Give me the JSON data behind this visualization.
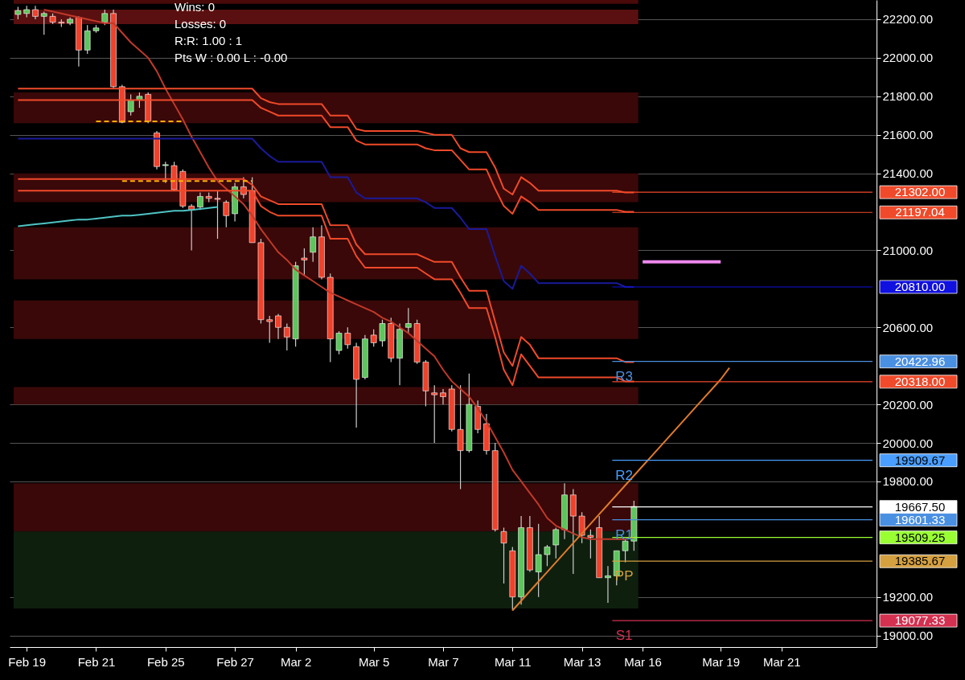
{
  "chart_data": {
    "type": "candlestick",
    "categories": [
      null,
      "Feb 19",
      null,
      null,
      null,
      null,
      null,
      null,
      null,
      "Feb 21",
      null,
      null,
      null,
      null,
      null,
      null,
      null,
      "Feb 25",
      null,
      null,
      null,
      null,
      null,
      null,
      null,
      "Feb 27",
      null,
      null,
      null,
      null,
      null,
      null,
      "Mar 2",
      null,
      null,
      null,
      null,
      null,
      null,
      null,
      null,
      "Mar 5",
      null,
      null,
      null,
      null,
      null,
      null,
      null,
      "Mar 7",
      null,
      null,
      null,
      null,
      null,
      null,
      null,
      "Mar 11",
      null,
      null,
      null,
      null,
      null,
      null,
      null,
      "Mar 13",
      null,
      null,
      null,
      null,
      null,
      null,
      "Mar 16",
      null,
      null,
      null,
      null,
      null,
      null,
      null,
      null,
      "Mar 19",
      null,
      null,
      null,
      null,
      null,
      null,
      "Mar 21",
      null,
      null,
      null,
      null,
      null,
      null,
      null,
      null,
      null,
      null
    ],
    "ohlc": [
      [
        22225,
        22265,
        22200,
        22245
      ],
      [
        22230,
        22270,
        22210,
        22250
      ],
      [
        22250,
        22270,
        22200,
        22215
      ],
      [
        22215,
        22240,
        22120,
        22230
      ],
      [
        22215,
        22230,
        22175,
        22185
      ],
      [
        22185,
        22200,
        22160,
        22180
      ],
      [
        22180,
        22210,
        22170,
        22200
      ],
      [
        22210,
        22215,
        21955,
        22040
      ],
      [
        22040,
        22170,
        22020,
        22140
      ],
      [
        22140,
        22170,
        22130,
        22155
      ],
      [
        22185,
        22250,
        22170,
        22230
      ],
      [
        22230,
        22250,
        21840,
        21850
      ],
      [
        21850,
        21860,
        21660,
        21665
      ],
      [
        21720,
        21810,
        21700,
        21780
      ],
      [
        21780,
        21820,
        21740,
        21800
      ],
      [
        21810,
        21820,
        21660,
        21670
      ],
      [
        21610,
        21620,
        21420,
        21435
      ],
      [
        21440,
        21460,
        21350,
        21445
      ],
      [
        21440,
        21460,
        21310,
        21315
      ],
      [
        21410,
        21420,
        21220,
        21230
      ],
      [
        21230,
        21240,
        21000,
        21210
      ],
      [
        21225,
        21300,
        21210,
        21280
      ],
      [
        21280,
        21300,
        21250,
        21270
      ],
      [
        21270,
        21310,
        21060,
        21265
      ],
      [
        21250,
        21260,
        21120,
        21180
      ],
      [
        21190,
        21350,
        21150,
        21330
      ],
      [
        21330,
        21380,
        21270,
        21290
      ],
      [
        21310,
        21380,
        21040,
        21040
      ],
      [
        21040,
        21060,
        20620,
        20640
      ],
      [
        20640,
        20660,
        20520,
        20630
      ],
      [
        20660,
        20670,
        20540,
        20600
      ],
      [
        20600,
        20620,
        20480,
        20550
      ],
      [
        20540,
        20940,
        20500,
        20920
      ],
      [
        20960,
        21010,
        20870,
        20950
      ],
      [
        20990,
        21120,
        20940,
        21070
      ],
      [
        21070,
        21130,
        20850,
        20860
      ],
      [
        20860,
        20880,
        20420,
        20540
      ],
      [
        20480,
        20580,
        20460,
        20570
      ],
      [
        20570,
        20600,
        20490,
        20510
      ],
      [
        20500,
        20520,
        20080,
        20330
      ],
      [
        20340,
        20560,
        20330,
        20540
      ],
      [
        20560,
        20590,
        20500,
        20520
      ],
      [
        20530,
        20640,
        20500,
        20620
      ],
      [
        20620,
        20650,
        20420,
        20440
      ],
      [
        20440,
        20620,
        20300,
        20590
      ],
      [
        20600,
        20700,
        20570,
        20620
      ],
      [
        20620,
        20640,
        20410,
        20420
      ],
      [
        20420,
        20430,
        20190,
        20270
      ],
      [
        20260,
        20300,
        20000,
        20250
      ],
      [
        20260,
        20280,
        20200,
        20240
      ],
      [
        20280,
        20300,
        20060,
        20070
      ],
      [
        20070,
        20300,
        19760,
        19960
      ],
      [
        19960,
        20360,
        19950,
        20200
      ],
      [
        20190,
        20220,
        20050,
        20070
      ],
      [
        20100,
        20150,
        19940,
        19960
      ],
      [
        19960,
        20000,
        19540,
        19550
      ],
      [
        19540,
        19560,
        19270,
        19480
      ],
      [
        19440,
        19460,
        19130,
        19200
      ],
      [
        19200,
        19620,
        19160,
        19560
      ],
      [
        19560,
        19620,
        19330,
        19340
      ],
      [
        19330,
        19580,
        19200,
        19420
      ],
      [
        19420,
        19470,
        19360,
        19460
      ],
      [
        19470,
        19560,
        19400,
        19550
      ],
      [
        19550,
        19790,
        19500,
        19730
      ],
      [
        19730,
        19760,
        19320,
        19620
      ],
      [
        19620,
        19640,
        19480,
        19520
      ],
      [
        19520,
        19550,
        19400,
        19510
      ],
      [
        19560,
        19620,
        19300,
        19300
      ],
      [
        19300,
        19360,
        19170,
        19310
      ],
      [
        19310,
        19440,
        19260,
        19440
      ],
      [
        19440,
        19500,
        19380,
        19490
      ],
      [
        19490,
        19700,
        19440,
        19670
      ],
      null,
      null,
      null,
      null,
      null,
      null,
      null,
      null,
      null,
      null,
      null,
      null,
      null,
      null,
      null,
      null,
      null,
      null,
      null,
      null,
      null,
      null,
      null,
      null,
      null,
      null,
      null
    ],
    "colors": [
      "#5cc55c",
      "#5cc55c",
      "#f0412a",
      "#5cc55c",
      "#f0412a",
      "#f0412a",
      "#5cc55c",
      "#f0412a",
      "#5cc55c",
      "#5cc55c",
      "#5cc55c",
      "#f0412a",
      "#f0412a",
      "#5cc55c",
      "#5cc55c",
      "#f0412a",
      "#f0412a",
      "#5cc55c",
      "#f0412a",
      "#f0412a",
      "#f0412a",
      "#5cc55c",
      "#f0412a",
      "#f0412a",
      "#f0412a",
      "#5cc55c",
      "#f0412a",
      "#f0412a",
      "#f0412a",
      "#f0412a",
      "#f0412a",
      "#f0412a",
      "#5cc55c",
      "#f0412a",
      "#5cc55c",
      "#f0412a",
      "#f0412a",
      "#5cc55c",
      "#f0412a",
      "#f0412a",
      "#5cc55c",
      "#f0412a",
      "#5cc55c",
      "#f0412a",
      "#5cc55c",
      "#5cc55c",
      "#f0412a",
      "#f0412a",
      "#f0412a",
      "#f0412a",
      "#f0412a",
      "#f0412a",
      "#5cc55c",
      "#f0412a",
      "#f0412a",
      "#f0412a",
      "#f0412a",
      "#f0412a",
      "#5cc55c",
      "#f0412a",
      "#5cc55c",
      "#5cc55c",
      "#5cc55c",
      "#5cc55c",
      "#f0412a",
      "#f0412a",
      "#f0412a",
      "#f0412a",
      "#5cc55c",
      "#5cc55c",
      "#5cc55c",
      "#5cc55c",
      null,
      null,
      null,
      null,
      null,
      null,
      null,
      null,
      null,
      null,
      null,
      null,
      null,
      null,
      null,
      null,
      null,
      null,
      null,
      null,
      null,
      null,
      null,
      null,
      null,
      null,
      null
    ],
    "series": [
      {
        "type": "line",
        "color": "#c0392b",
        "values": [
          null,
          null,
          null,
          22250,
          22240,
          22230,
          22220,
          22210,
          22200,
          22190,
          22180,
          22180,
          22130,
          22080,
          22040,
          22000,
          21930,
          21840,
          21760,
          21680,
          21590,
          21510,
          21430,
          21360,
          21320,
          21280,
          21240,
          21180,
          21110,
          21050,
          20990,
          20950,
          20900,
          20870,
          20840,
          20810,
          20780,
          20760,
          20740,
          20720,
          20700,
          20680,
          20650,
          20630,
          20600,
          20570,
          20530,
          20490,
          20450,
          20380,
          20320,
          20280,
          20240,
          20180,
          20110,
          20030,
          19950,
          19860,
          19800,
          19740,
          19680,
          19610,
          19570,
          19550,
          19530,
          19510,
          19500,
          19500,
          19500,
          19500,
          19500,
          19510,
          null,
          null,
          null,
          null,
          null,
          null,
          null,
          null,
          null,
          null,
          null,
          null,
          null,
          null,
          null,
          null,
          null,
          null,
          null,
          null,
          null,
          null,
          null,
          null,
          null,
          null,
          null
        ]
      },
      {
        "type": "line",
        "color": "#f04a2a",
        "values": [
          21840,
          21840,
          21840,
          21840,
          21840,
          21840,
          21840,
          21840,
          21840,
          21840,
          21840,
          21840,
          21840,
          21840,
          21840,
          21840,
          21840,
          21840,
          21840,
          21840,
          21840,
          21840,
          21840,
          21840,
          21840,
          21840,
          21840,
          21840,
          21790,
          21770,
          21760,
          21760,
          21760,
          21760,
          21760,
          21760,
          21700,
          21700,
          21700,
          21630,
          21620,
          21620,
          21620,
          21620,
          21620,
          21620,
          21620,
          21610,
          21600,
          21600,
          21600,
          21530,
          21510,
          21510,
          21510,
          21430,
          21320,
          21290,
          21380,
          21350,
          21310,
          21310,
          21310,
          21310,
          21310,
          21310,
          21310,
          21310,
          21310,
          21310,
          21300,
          21300,
          null,
          null,
          null,
          null,
          null,
          null,
          null,
          null,
          null,
          null,
          null,
          null,
          null,
          null,
          null,
          null,
          null,
          null,
          null,
          null,
          null,
          null,
          null,
          null,
          null,
          null,
          null
        ]
      },
      {
        "type": "line",
        "color": "#f04a2a",
        "values": [
          21780,
          21780,
          21780,
          21780,
          21780,
          21780,
          21780,
          21780,
          21780,
          21780,
          21780,
          21780,
          21780,
          21780,
          21780,
          21780,
          21780,
          21780,
          21780,
          21780,
          21780,
          21780,
          21780,
          21780,
          21780,
          21780,
          21780,
          21780,
          21740,
          21720,
          21700,
          21700,
          21700,
          21700,
          21700,
          21700,
          21640,
          21640,
          21640,
          21570,
          21550,
          21550,
          21550,
          21550,
          21550,
          21550,
          21550,
          21530,
          21520,
          21520,
          21520,
          21470,
          21420,
          21420,
          21420,
          21320,
          21230,
          21190,
          21280,
          21250,
          21210,
          21210,
          21210,
          21210,
          21210,
          21210,
          21210,
          21210,
          21210,
          21210,
          21200,
          21200,
          null,
          null,
          null,
          null,
          null,
          null,
          null,
          null,
          null,
          null,
          null,
          null,
          null,
          null,
          null,
          null,
          null,
          null,
          null,
          null,
          null,
          null,
          null,
          null,
          null,
          null,
          null
        ]
      },
      {
        "type": "line",
        "color": "#f04a2a",
        "values": [
          21370,
          21370,
          21370,
          21370,
          21370,
          21370,
          21370,
          21370,
          21370,
          21370,
          21370,
          21370,
          21370,
          21370,
          21370,
          21370,
          21370,
          21370,
          21370,
          21370,
          21370,
          21370,
          21370,
          21370,
          21370,
          21370,
          21370,
          21340,
          21280,
          21260,
          21240,
          21240,
          21240,
          21240,
          21240,
          21240,
          21130,
          21130,
          21130,
          21030,
          20980,
          20980,
          20980,
          20980,
          20980,
          20980,
          20980,
          20960,
          20940,
          20940,
          20940,
          20860,
          20790,
          20790,
          20790,
          20630,
          20470,
          20400,
          20550,
          20510,
          20440,
          20440,
          20440,
          20440,
          20440,
          20440,
          20440,
          20440,
          20440,
          20440,
          20420,
          20420,
          null,
          null,
          null,
          null,
          null,
          null,
          null,
          null,
          null,
          null,
          null,
          null,
          null,
          null,
          null,
          null,
          null,
          null,
          null,
          null,
          null,
          null,
          null,
          null,
          null,
          null,
          null
        ]
      },
      {
        "type": "line",
        "color": "#f04a2a",
        "values": [
          21310,
          21310,
          21310,
          21310,
          21310,
          21310,
          21310,
          21310,
          21310,
          21310,
          21310,
          21310,
          21310,
          21310,
          21310,
          21310,
          21310,
          21310,
          21310,
          21310,
          21310,
          21310,
          21310,
          21310,
          21310,
          21310,
          21310,
          21310,
          21230,
          21200,
          21180,
          21180,
          21180,
          21180,
          21180,
          21180,
          21060,
          21060,
          21060,
          20970,
          20910,
          20910,
          20910,
          20910,
          20910,
          20910,
          20910,
          20880,
          20850,
          20850,
          20850,
          20780,
          20700,
          20700,
          20700,
          20550,
          20380,
          20300,
          20460,
          20400,
          20340,
          20340,
          20340,
          20340,
          20340,
          20340,
          20340,
          20340,
          20340,
          20340,
          20320,
          20320,
          null,
          null,
          null,
          null,
          null,
          null,
          null,
          null,
          null,
          null,
          null,
          null,
          null,
          null,
          null,
          null,
          null,
          null,
          null,
          null,
          null,
          null,
          null,
          null,
          null,
          null,
          null
        ]
      },
      {
        "type": "line",
        "color": "#1a1a9a",
        "values": [
          21580,
          21580,
          21580,
          21580,
          21580,
          21580,
          21580,
          21580,
          21580,
          21580,
          21580,
          21580,
          21580,
          21580,
          21580,
          21580,
          21580,
          21580,
          21580,
          21580,
          21580,
          21580,
          21580,
          21580,
          21580,
          21580,
          21580,
          21580,
          21530,
          21490,
          21460,
          21460,
          21460,
          21460,
          21460,
          21460,
          21380,
          21380,
          21380,
          21300,
          21270,
          21270,
          21270,
          21270,
          21270,
          21270,
          21270,
          21250,
          21220,
          21220,
          21220,
          21170,
          21110,
          21110,
          21110,
          20970,
          20840,
          20800,
          20920,
          20880,
          20830,
          20830,
          20830,
          20830,
          20830,
          20830,
          20830,
          20830,
          20830,
          20830,
          20810,
          20810,
          null,
          null,
          null,
          null,
          null,
          null,
          null,
          null,
          null,
          null,
          null,
          null,
          null,
          null,
          null,
          null,
          null,
          null,
          null,
          null,
          null,
          null,
          null,
          null,
          null,
          null,
          null
        ]
      },
      {
        "type": "line",
        "color": "#4fc3c3",
        "values": [
          21125,
          21130,
          21135,
          21140,
          21145,
          21150,
          21155,
          21160,
          21160,
          21165,
          21170,
          21175,
          21180,
          21180,
          21185,
          21190,
          21195,
          21200,
          21205,
          21205,
          21210,
          21215,
          21220,
          21225,
          null,
          null,
          null,
          null,
          null,
          null,
          null,
          null,
          null,
          null,
          null,
          null,
          null,
          null,
          null,
          null,
          null,
          null,
          null,
          null,
          null,
          null,
          null,
          null,
          null,
          null,
          null,
          null,
          null,
          null,
          null,
          null,
          null,
          null,
          null,
          null,
          null,
          null,
          null,
          null,
          null,
          null,
          null,
          null,
          null,
          null,
          null,
          null,
          null,
          null,
          null,
          null,
          null,
          null,
          null,
          null,
          null,
          null,
          null,
          null,
          null,
          null,
          null,
          null,
          null,
          null,
          null,
          null,
          null,
          null,
          null,
          null,
          null,
          null,
          null
        ]
      },
      {
        "type": "line",
        "color": "#ffb000",
        "line_style": "dashed",
        "values": [
          null,
          null,
          null,
          null,
          null,
          null,
          null,
          null,
          null,
          21670,
          21670,
          21670,
          21670,
          21670,
          21670,
          21670,
          21670,
          21670,
          21670,
          21670,
          null,
          null,
          null,
          null,
          null,
          null,
          null,
          null,
          null,
          null,
          null,
          null,
          null,
          null,
          null,
          null,
          null,
          null,
          null,
          null,
          null,
          null,
          null,
          null,
          null,
          null,
          null,
          null,
          null,
          null,
          null,
          null,
          null,
          null,
          null,
          null,
          null,
          null,
          null,
          null,
          null,
          null,
          null,
          null,
          null,
          null,
          null,
          null,
          null,
          null,
          null,
          null,
          null,
          null,
          null,
          null,
          null,
          null,
          null,
          null,
          null,
          null,
          null,
          null,
          null,
          null,
          null,
          null,
          null,
          null,
          null,
          null,
          null,
          null,
          null,
          null,
          null,
          null,
          null
        ]
      },
      {
        "type": "line",
        "color": "#ffb000",
        "line_style": "dashed",
        "values": [
          null,
          null,
          null,
          null,
          null,
          null,
          null,
          null,
          null,
          null,
          null,
          null,
          21360,
          21360,
          21360,
          21360,
          21360,
          21360,
          21360,
          21360,
          21360,
          21360,
          21360,
          21360,
          21360,
          21360,
          21360,
          21360,
          null,
          null,
          null,
          null,
          null,
          null,
          null,
          null,
          null,
          null,
          null,
          null,
          null,
          null,
          null,
          null,
          null,
          null,
          null,
          null,
          null,
          null,
          null,
          null,
          null,
          null,
          null,
          null,
          null,
          null,
          null,
          null,
          null,
          null,
          null,
          null,
          null,
          null,
          null,
          null,
          null,
          null,
          null,
          null,
          null,
          null,
          null,
          null,
          null,
          null,
          null,
          null,
          null,
          null,
          null,
          null,
          null,
          null,
          null,
          null,
          null,
          null,
          null,
          null,
          null,
          null,
          null,
          null,
          null,
          null,
          null
        ]
      },
      {
        "type": "line",
        "color": "#ee88ee",
        "values": [
          null,
          null,
          null,
          null,
          null,
          null,
          null,
          null,
          null,
          null,
          null,
          null,
          null,
          null,
          null,
          null,
          null,
          null,
          null,
          null,
          null,
          null,
          null,
          null,
          null,
          null,
          null,
          null,
          null,
          null,
          null,
          null,
          null,
          null,
          null,
          null,
          null,
          null,
          null,
          null,
          null,
          null,
          null,
          null,
          null,
          null,
          null,
          null,
          null,
          null,
          null,
          null,
          null,
          null,
          null,
          null,
          null,
          null,
          null,
          null,
          null,
          null,
          null,
          null,
          null,
          null,
          null,
          null,
          null,
          null,
          null,
          null,
          20940,
          20940,
          20940,
          20940,
          20940,
          20940,
          20940,
          20940,
          20940,
          20940,
          null,
          null,
          null,
          null,
          null,
          null,
          null,
          null,
          null,
          null,
          null,
          null,
          null,
          null,
          null,
          null,
          null
        ]
      },
      {
        "type": "line",
        "color": "#e07b2a",
        "values": [
          null,
          null,
          null,
          null,
          null,
          null,
          null,
          null,
          null,
          null,
          null,
          null,
          null,
          null,
          null,
          null,
          null,
          null,
          null,
          null,
          null,
          null,
          null,
          null,
          null,
          null,
          null,
          null,
          null,
          null,
          null,
          null,
          null,
          null,
          null,
          null,
          null,
          null,
          null,
          null,
          null,
          null,
          null,
          null,
          null,
          null,
          null,
          null,
          null,
          null,
          null,
          null,
          null,
          null,
          null,
          null,
          null,
          19130,
          19180,
          19230,
          19280,
          19330,
          19380,
          19430,
          19480,
          19530,
          19580,
          19630,
          19680,
          19730,
          19780,
          19830,
          19880,
          19930,
          19980,
          20030,
          20080,
          20130,
          20180,
          20230,
          20280,
          20330,
          20390,
          null,
          null,
          null,
          null,
          null,
          null,
          null,
          null,
          null,
          null,
          null,
          null,
          null,
          null,
          null,
          null
        ]
      }
    ],
    "bands": [
      {
        "axis": "y",
        "from": 22280,
        "to": 22300,
        "color": "#4a0a0a"
      },
      {
        "axis": "y",
        "from": 22175,
        "to": 22250,
        "color": "#5a1010"
      },
      {
        "axis": "y",
        "from": 21660,
        "to": 21820,
        "color": "#3a0808"
      },
      {
        "axis": "y",
        "from": 21250,
        "to": 21400,
        "color": "#3a0808"
      },
      {
        "axis": "y",
        "from": 20850,
        "to": 21120,
        "color": "#3a0808"
      },
      {
        "axis": "y",
        "from": 20540,
        "to": 20740,
        "color": "#3a0808"
      },
      {
        "axis": "y",
        "from": 20200,
        "to": 20290,
        "color": "#3a0808"
      },
      {
        "axis": "y",
        "from": 19540,
        "to": 19790,
        "color": "#3a0808"
      },
      {
        "axis": "y",
        "from": 19140,
        "to": 19540,
        "color": "#0e1f0e"
      }
    ],
    "ref_lines": [
      {
        "axis": "y",
        "value": 21302.0,
        "label": "21302.00",
        "color": "#f04a2a"
      },
      {
        "axis": "y",
        "value": 21197.04,
        "label": "21197.04",
        "color": "#f04a2a"
      },
      {
        "axis": "y",
        "value": 20810.0,
        "label": "20810.00",
        "color": "#1010e0"
      },
      {
        "axis": "y",
        "value": 20422.96,
        "label": "20422.96",
        "color": "#4a90e2"
      },
      {
        "axis": "y",
        "value": 20318.0,
        "label": "20318.00",
        "color": "#f04a2a"
      },
      {
        "axis": "y",
        "value": 19909.67,
        "label": "19909.67",
        "color": "#4a9eff"
      },
      {
        "axis": "y",
        "value": 19667.5,
        "label": "19667.50",
        "color": "#ffffff"
      },
      {
        "axis": "y",
        "value": 19601.33,
        "label": "19601.33",
        "color": "#4a90e2"
      },
      {
        "axis": "y",
        "value": 19509.25,
        "label": "19509.25",
        "color": "#99ff33"
      },
      {
        "axis": "y",
        "value": 19385.67,
        "label": "19385.67",
        "color": "#d4a040"
      },
      {
        "axis": "y",
        "value": 19077.33,
        "label": "19077.33",
        "color": "#d43050"
      }
    ],
    "annotations": [
      "Wins: 0",
      "Losses: 0",
      "R:R: 1.00 : 1",
      "Pts W : 0.00  L : -0.00",
      {
        "text": "R3",
        "y": 20422.96
      },
      {
        "text": "R2",
        "y": 19909.67
      },
      {
        "text": "R1",
        "y": 19601.33
      },
      {
        "text": "PP",
        "y": 19385.67
      },
      {
        "text": "S1",
        "y": 19077.33
      }
    ],
    "ylim": [
      18940,
      22300
    ],
    "yticks": [
      {
        "value": 19000,
        "label": "19000.00"
      },
      {
        "value": 19200,
        "label": "19200.00"
      },
      {
        "value": 19800,
        "label": "19800.00"
      },
      {
        "value": 20000,
        "label": "20000.00"
      },
      {
        "value": 20200,
        "label": "20200.00"
      },
      {
        "value": 20600,
        "label": "20600.00"
      },
      {
        "value": 21000,
        "label": "21000.00"
      },
      {
        "value": 21400,
        "label": "21400.00"
      },
      {
        "value": 21600,
        "label": "21600.00"
      },
      {
        "value": 21800,
        "label": "21800.00"
      },
      {
        "value": 22000,
        "label": "22000.00"
      },
      {
        "value": 22200,
        "label": "22200.00"
      }
    ],
    "grid": "y"
  }
}
